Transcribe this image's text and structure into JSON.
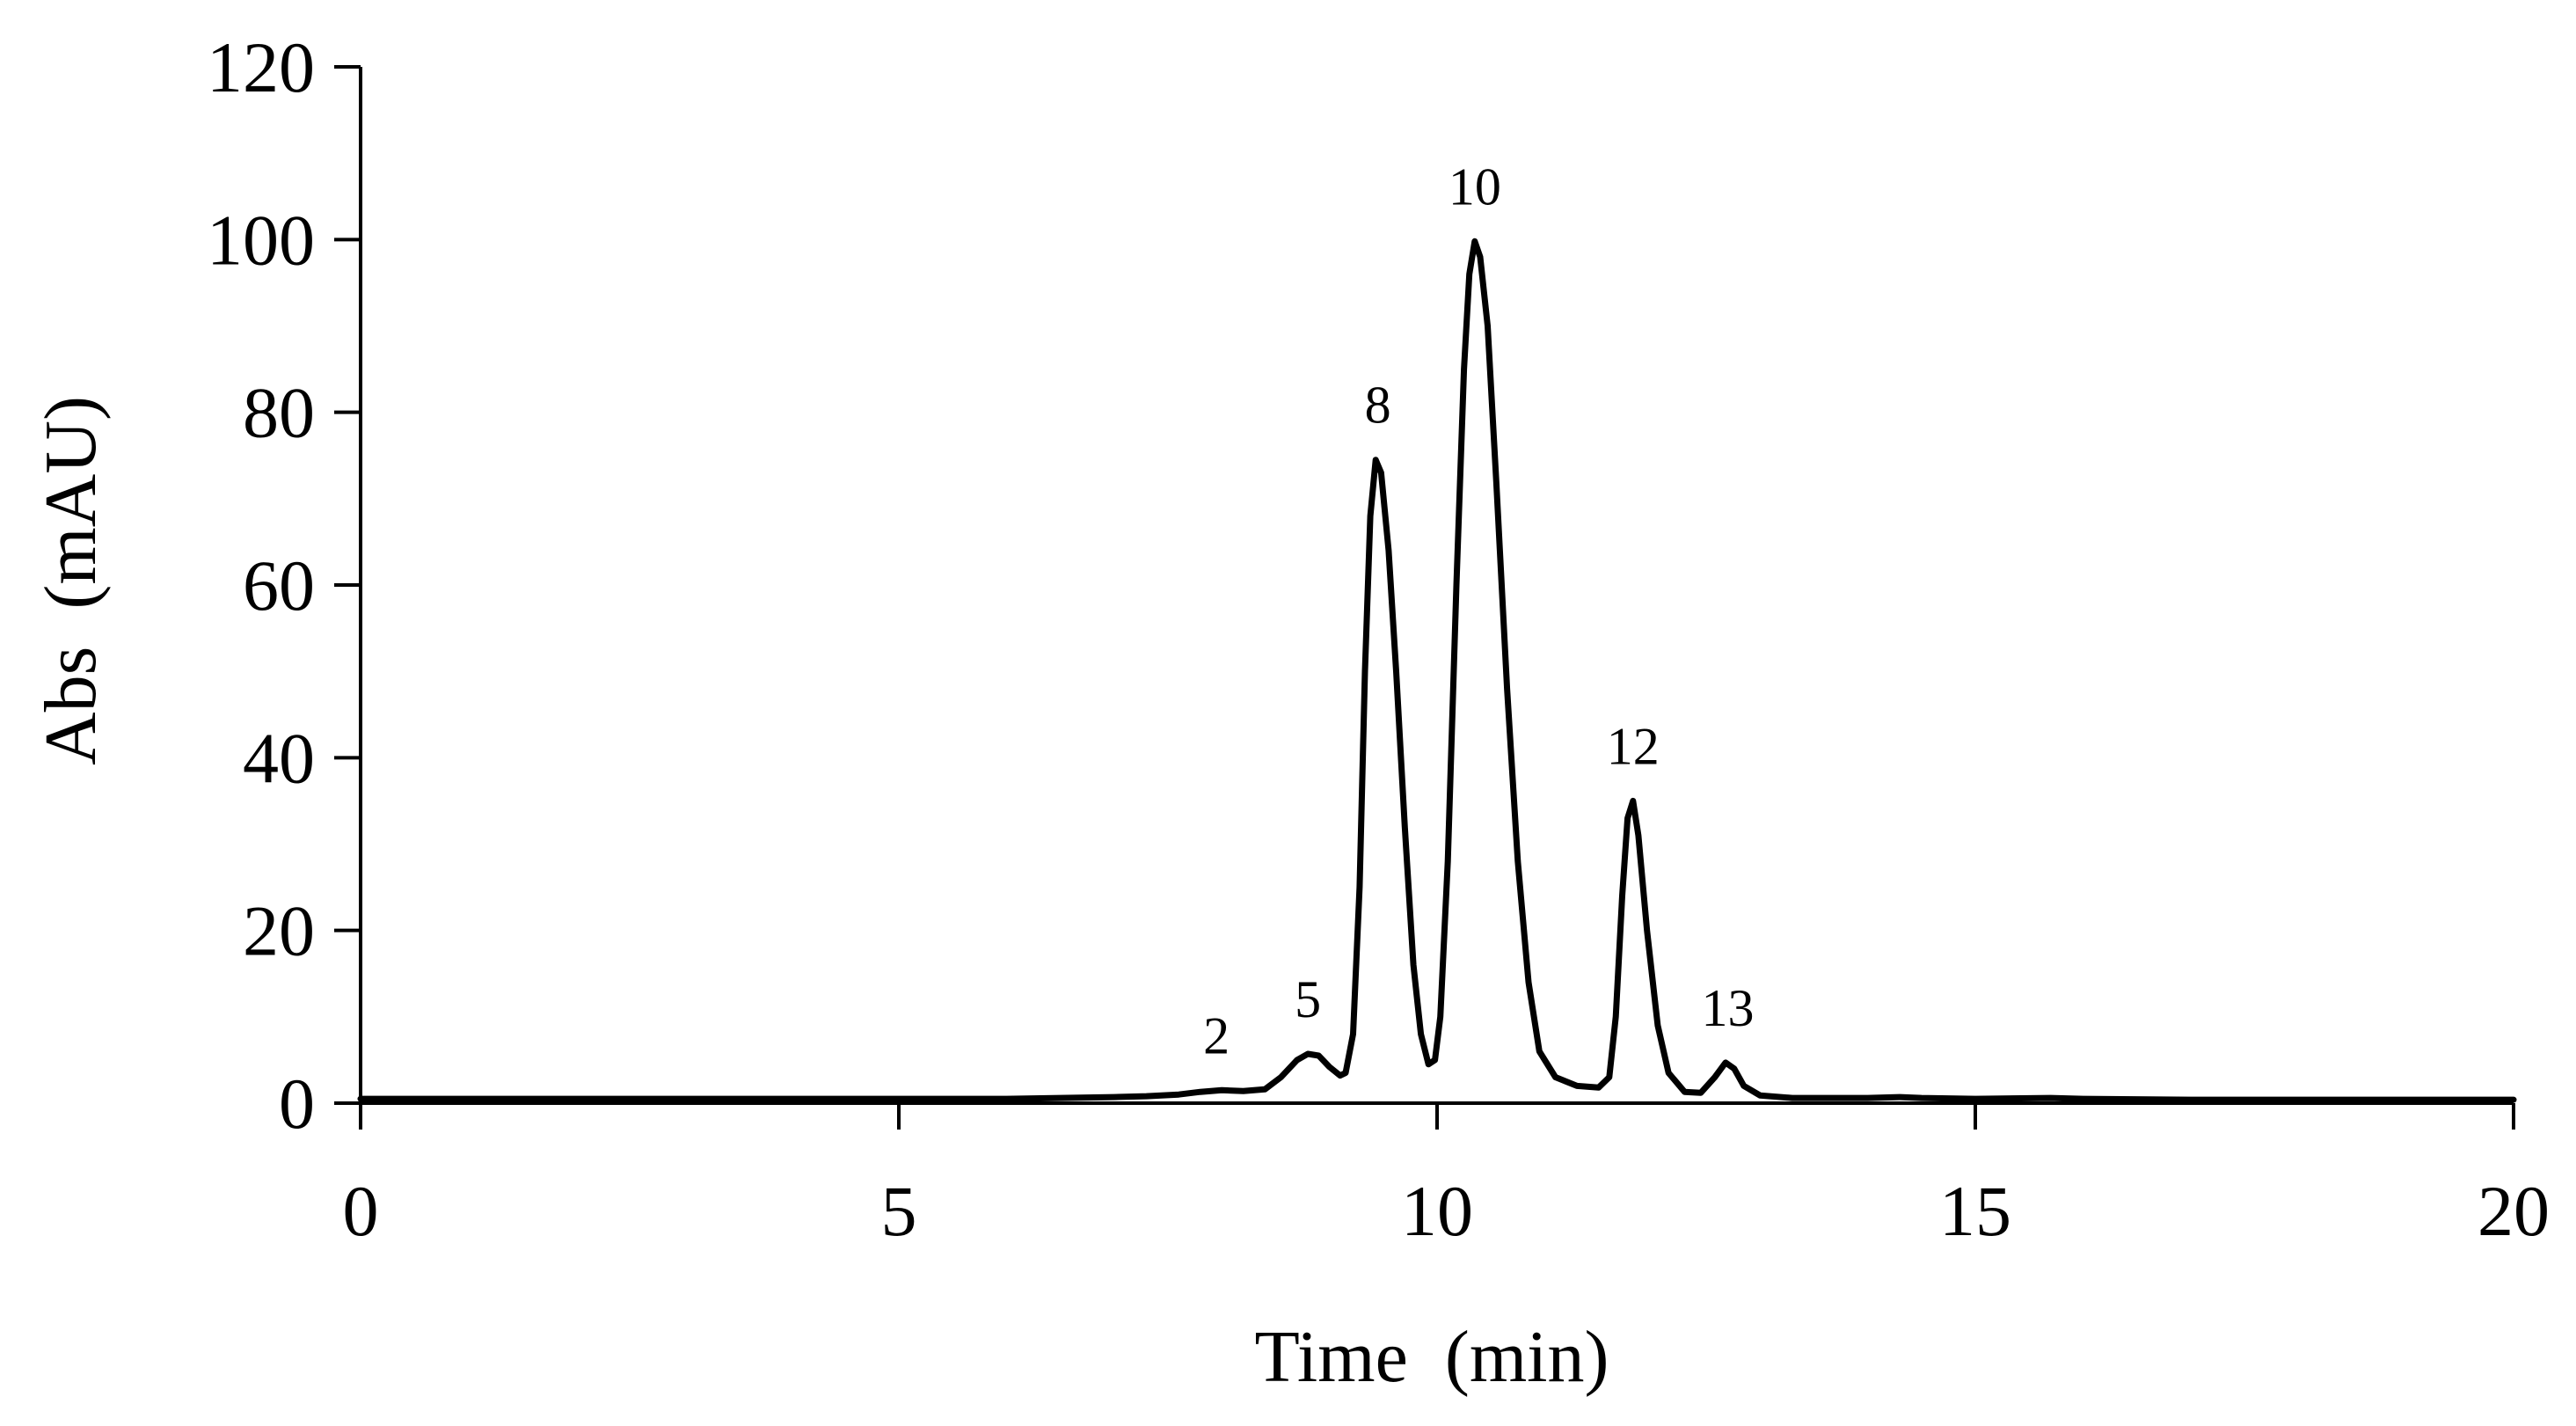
{
  "chart_data": {
    "type": "line",
    "title": "",
    "xlabel": "Time  (min)",
    "ylabel": "Abs  (mAU)",
    "xlim": [
      0,
      20
    ],
    "ylim": [
      0,
      120
    ],
    "x_ticks": [
      0,
      5,
      10,
      15,
      20
    ],
    "y_ticks": [
      0,
      20,
      40,
      60,
      80,
      100,
      120
    ],
    "grid": false,
    "legend": "none",
    "colors": {
      "line": "#000000",
      "axis": "#000000"
    },
    "series": [
      {
        "points": [
          [
            0.0,
            0.5
          ],
          [
            0.5,
            0.5
          ],
          [
            1.0,
            0.5
          ],
          [
            2.0,
            0.5
          ],
          [
            3.0,
            0.5
          ],
          [
            4.0,
            0.5
          ],
          [
            5.0,
            0.5
          ],
          [
            6.0,
            0.5
          ],
          [
            6.5,
            0.6
          ],
          [
            7.0,
            0.7
          ],
          [
            7.3,
            0.8
          ],
          [
            7.6,
            1.0
          ],
          [
            7.8,
            1.3
          ],
          [
            8.0,
            1.5
          ],
          [
            8.2,
            1.4
          ],
          [
            8.4,
            1.6
          ],
          [
            8.55,
            3.0
          ],
          [
            8.7,
            5.0
          ],
          [
            8.8,
            5.7
          ],
          [
            8.9,
            5.5
          ],
          [
            9.0,
            4.2
          ],
          [
            9.1,
            3.2
          ],
          [
            9.15,
            3.5
          ],
          [
            9.22,
            8.0
          ],
          [
            9.28,
            25.0
          ],
          [
            9.33,
            50.0
          ],
          [
            9.38,
            68.0
          ],
          [
            9.43,
            74.5
          ],
          [
            9.48,
            73.0
          ],
          [
            9.55,
            64.0
          ],
          [
            9.62,
            50.0
          ],
          [
            9.7,
            32.0
          ],
          [
            9.78,
            16.0
          ],
          [
            9.85,
            8.0
          ],
          [
            9.92,
            4.5
          ],
          [
            9.98,
            5.0
          ],
          [
            10.03,
            10.0
          ],
          [
            10.1,
            28.0
          ],
          [
            10.18,
            60.0
          ],
          [
            10.25,
            85.0
          ],
          [
            10.3,
            96.0
          ],
          [
            10.35,
            99.8
          ],
          [
            10.4,
            98.0
          ],
          [
            10.47,
            90.0
          ],
          [
            10.55,
            72.0
          ],
          [
            10.65,
            48.0
          ],
          [
            10.75,
            28.0
          ],
          [
            10.85,
            14.0
          ],
          [
            10.95,
            6.0
          ],
          [
            11.1,
            3.0
          ],
          [
            11.3,
            2.0
          ],
          [
            11.5,
            1.8
          ],
          [
            11.6,
            3.0
          ],
          [
            11.66,
            10.0
          ],
          [
            11.72,
            24.0
          ],
          [
            11.77,
            33.0
          ],
          [
            11.82,
            35.0
          ],
          [
            11.87,
            31.0
          ],
          [
            11.95,
            20.0
          ],
          [
            12.05,
            9.0
          ],
          [
            12.15,
            3.5
          ],
          [
            12.3,
            1.3
          ],
          [
            12.45,
            1.2
          ],
          [
            12.58,
            3.0
          ],
          [
            12.68,
            4.7
          ],
          [
            12.76,
            4.0
          ],
          [
            12.85,
            2.0
          ],
          [
            13.0,
            0.9
          ],
          [
            13.3,
            0.6
          ],
          [
            14.0,
            0.6
          ],
          [
            14.3,
            0.7
          ],
          [
            14.5,
            0.6
          ],
          [
            15.0,
            0.5
          ],
          [
            15.7,
            0.6
          ],
          [
            16.0,
            0.5
          ],
          [
            17.0,
            0.4
          ],
          [
            18.0,
            0.4
          ],
          [
            19.0,
            0.4
          ],
          [
            20.0,
            0.4
          ]
        ]
      }
    ],
    "annotations": [
      {
        "text": "2",
        "x": 7.95,
        "y": 1.5
      },
      {
        "text": "5",
        "x": 8.8,
        "y": 5.7
      },
      {
        "text": "8",
        "x": 9.45,
        "y": 74.5
      },
      {
        "text": "10",
        "x": 10.35,
        "y": 99.8
      },
      {
        "text": "12",
        "x": 11.82,
        "y": 35.0
      },
      {
        "text": "13",
        "x": 12.7,
        "y": 4.7
      }
    ]
  }
}
